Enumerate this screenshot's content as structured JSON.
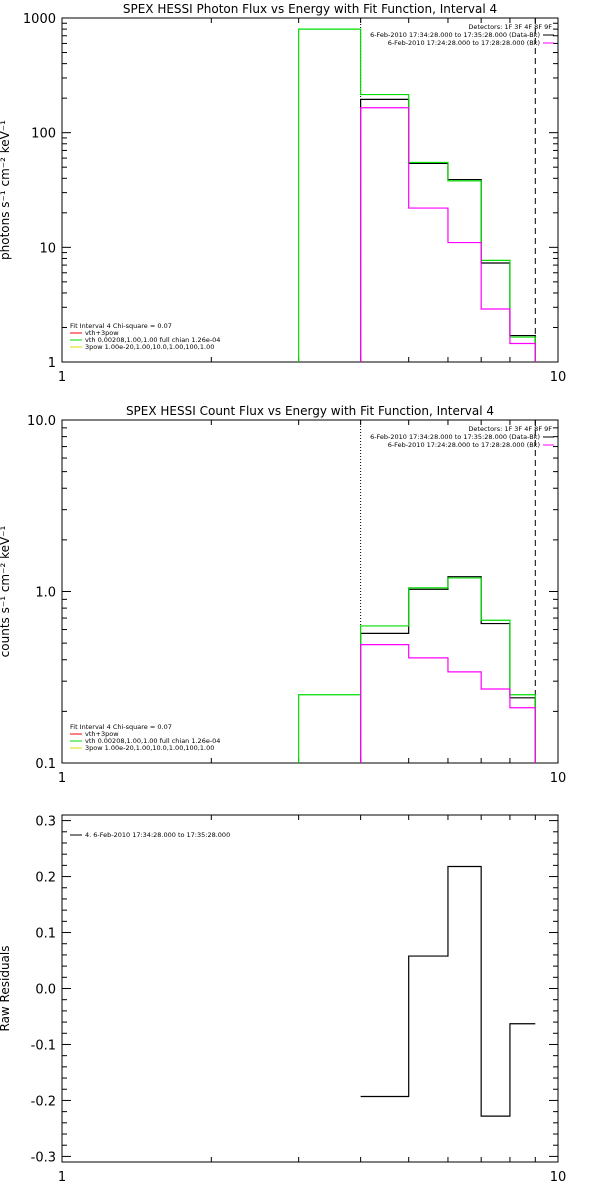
{
  "chart_data": [
    {
      "type": "line",
      "title": "SPEX HESSI Photon Flux vs Energy with Fit Function, Interval 4",
      "ylabel": "photons s⁻¹ cm⁻² keV⁻¹",
      "xscale": "log",
      "yscale": "log",
      "xlim": [
        1,
        10
      ],
      "ylim": [
        1,
        1000
      ],
      "x_tick_labels": [
        "1",
        "10"
      ],
      "y_tick_labels": [
        "1",
        "10",
        "100",
        "1000"
      ],
      "y_ticks": [
        1,
        10,
        100,
        1000
      ],
      "dotted_line_x": 4.0,
      "dashed_line_x": 9.0,
      "edges": [
        3.0,
        4.0,
        5.0,
        6.0,
        7.0,
        8.0,
        9.0
      ],
      "series": [
        {
          "color": "#000000",
          "values": [
            null,
            195,
            54,
            39,
            7.3,
            1.7
          ]
        },
        {
          "color": "#00dd00",
          "values": [
            800,
            215,
            55,
            38,
            7.7,
            1.65
          ]
        },
        {
          "color": "#ff00ff",
          "values": [
            null,
            165,
            22,
            11,
            2.9,
            1.45
          ]
        }
      ],
      "legend_right": {
        "header": "Detectors: 1F 3F 4F 8F 9F",
        "entries": [
          {
            "label": "6-Feb-2010 17:34:28.000 to 17:35:28.000 (Data-Bk)",
            "color": "#000000"
          },
          {
            "label": "6-Feb-2010 17:24:28.000 to 17:28:28.000 (Bk)",
            "color": "#ff00ff"
          }
        ]
      },
      "legend_left": {
        "header": "Fit Interval  4    Chi-square = 0.07",
        "entries": [
          {
            "label": "vth+3pow",
            "color": "#ff0000"
          },
          {
            "label": "vth 0.00208,1.00,1.00  full chian 1.26e-04",
            "color": "#00dd00"
          },
          {
            "label": "3pow 1.00e-20,1.00,10.0,1.00,100,1.00",
            "color": "#dddd00"
          }
        ]
      }
    },
    {
      "type": "line",
      "title": "SPEX HESSI Count Flux vs Energy with Fit Function, Interval 4",
      "ylabel": "counts s⁻¹ cm⁻² keV⁻¹",
      "xscale": "log",
      "yscale": "log",
      "xlim": [
        1,
        10
      ],
      "ylim": [
        0.1,
        10
      ],
      "x_tick_labels": [
        "1",
        "10"
      ],
      "y_tick_labels": [
        "0.1",
        "1.0",
        "10.0"
      ],
      "y_ticks": [
        0.1,
        1,
        10
      ],
      "dotted_line_x": 4.0,
      "dashed_line_x": 9.0,
      "edges": [
        3.0,
        4.0,
        5.0,
        6.0,
        7.0,
        8.0,
        9.0
      ],
      "series": [
        {
          "color": "#000000",
          "values": [
            null,
            0.57,
            1.03,
            1.22,
            0.65,
            0.24
          ]
        },
        {
          "color": "#00dd00",
          "values": [
            0.25,
            0.63,
            1.05,
            1.2,
            0.68,
            0.25
          ]
        },
        {
          "color": "#ff00ff",
          "values": [
            null,
            0.49,
            0.41,
            0.34,
            0.27,
            0.21
          ]
        }
      ],
      "legend_right": {
        "header": "Detectors: 1F 3F 4F 8F 9F",
        "entries": [
          {
            "label": "6-Feb-2010 17:34:28.000 to 17:35:28.000 (Data-Bk)",
            "color": "#000000"
          },
          {
            "label": "6-Feb-2010 17:24:28.000 to 17:28:28.000 (Bk)",
            "color": "#ff00ff"
          }
        ]
      },
      "legend_left": {
        "header": "Fit Interval  4    Chi-square = 0.07",
        "entries": [
          {
            "label": "vth+3pow",
            "color": "#ff0000"
          },
          {
            "label": "vth 0.00208,1.00,1.00  full chian 1.26e-04",
            "color": "#00dd00"
          },
          {
            "label": "3pow 1.00e-20,1.00,10.0,1.00,100,1.00",
            "color": "#dddd00"
          }
        ]
      }
    },
    {
      "type": "line",
      "title": "",
      "ylabel": "Raw Residuals",
      "xscale": "log",
      "yscale": "linear",
      "xlim": [
        1,
        10
      ],
      "ylim": [
        -0.31,
        0.31
      ],
      "x_tick_labels": [
        "1",
        "10"
      ],
      "y_tick_labels": [
        "-0.3",
        "-0.2",
        "-0.1",
        "0.0",
        "0.1",
        "0.2",
        "0.3"
      ],
      "y_ticks": [
        -0.3,
        -0.2,
        -0.1,
        0.0,
        0.1,
        0.2,
        0.3
      ],
      "edges": [
        4.0,
        5.0,
        6.0,
        7.0,
        8.0,
        9.0
      ],
      "series": [
        {
          "color": "#000000",
          "values": [
            -0.193,
            0.058,
            0.218,
            -0.228,
            -0.063
          ]
        }
      ],
      "legend_left": {
        "header": "",
        "entries": [
          {
            "label": "4.  6-Feb-2010 17:34:28.000 to 17:35:28.000",
            "color": "#000000"
          }
        ]
      }
    }
  ]
}
